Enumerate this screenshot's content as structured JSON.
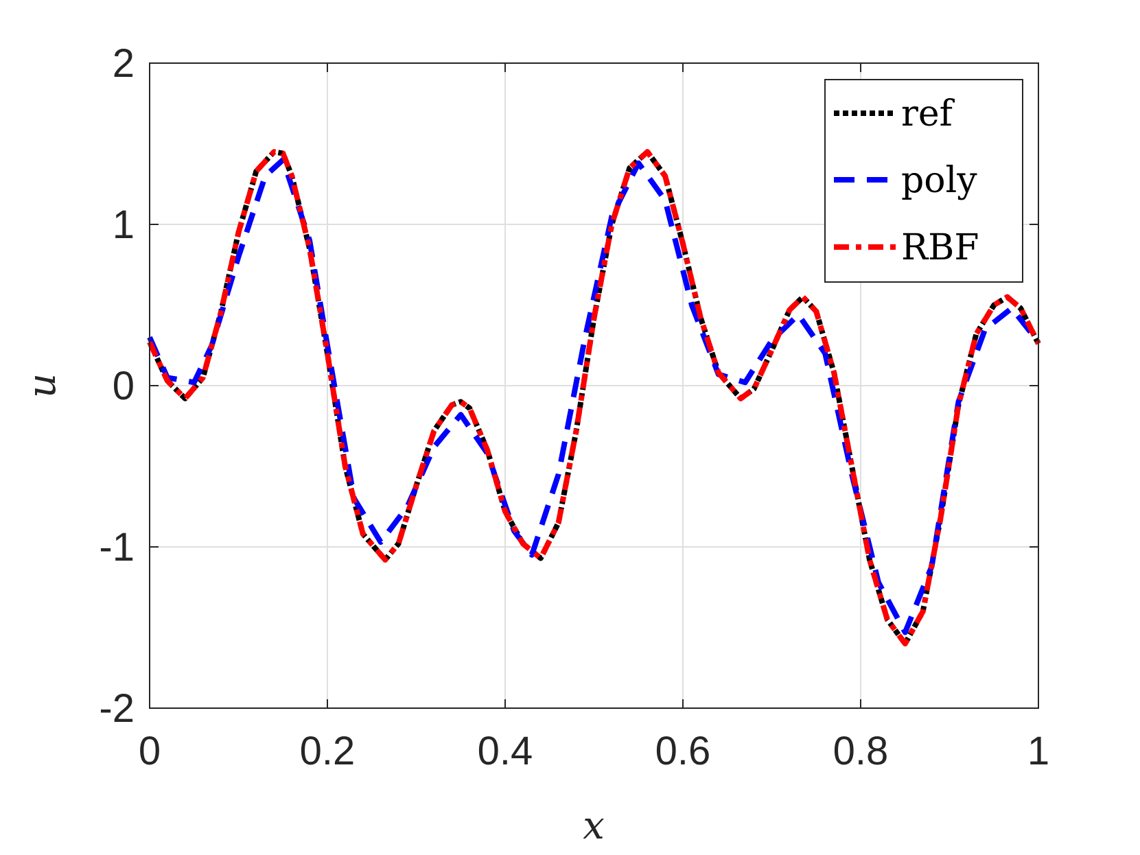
{
  "chart_data": {
    "type": "line",
    "title": "",
    "xlabel": "x",
    "ylabel": "u",
    "xlim": [
      0,
      1
    ],
    "ylim": [
      -2,
      2
    ],
    "xticks": [
      0,
      0.2,
      0.4,
      0.6,
      0.8,
      1
    ],
    "xtick_labels": [
      "0",
      "0.2",
      "0.4",
      "0.6",
      "0.8",
      "1"
    ],
    "yticks": [
      -2,
      -1,
      0,
      1,
      2
    ],
    "ytick_labels": [
      "-2",
      "-1",
      "0",
      "1",
      "2"
    ],
    "grid": true,
    "legend_position": "top-right",
    "series": [
      {
        "name": "ref",
        "color": "#000000",
        "style": "dotted",
        "x": [
          0,
          0.02,
          0.04,
          0.06,
          0.08,
          0.1,
          0.12,
          0.14,
          0.15,
          0.16,
          0.18,
          0.2,
          0.22,
          0.24,
          0.265,
          0.28,
          0.3,
          0.32,
          0.34,
          0.35,
          0.36,
          0.38,
          0.4,
          0.42,
          0.44,
          0.46,
          0.48,
          0.5,
          0.52,
          0.54,
          0.56,
          0.58,
          0.6,
          0.62,
          0.64,
          0.665,
          0.68,
          0.7,
          0.72,
          0.735,
          0.75,
          0.77,
          0.79,
          0.81,
          0.83,
          0.85,
          0.87,
          0.89,
          0.91,
          0.93,
          0.95,
          0.965,
          0.98,
          1.0
        ],
        "y": [
          0.27,
          0.03,
          -0.08,
          0.05,
          0.45,
          0.95,
          1.33,
          1.45,
          1.44,
          1.3,
          0.85,
          0.2,
          -0.5,
          -0.92,
          -1.08,
          -0.98,
          -0.62,
          -0.28,
          -0.12,
          -0.1,
          -0.14,
          -0.4,
          -0.78,
          -0.98,
          -1.07,
          -0.85,
          -0.28,
          0.42,
          1.0,
          1.35,
          1.45,
          1.3,
          0.88,
          0.42,
          0.08,
          -0.08,
          -0.02,
          0.22,
          0.47,
          0.55,
          0.46,
          0.08,
          -0.5,
          -1.08,
          -1.45,
          -1.6,
          -1.4,
          -0.82,
          -0.12,
          0.32,
          0.5,
          0.55,
          0.48,
          0.26
        ]
      },
      {
        "name": "poly",
        "color": "#0000ff",
        "style": "dashed",
        "x": [
          0,
          0.02,
          0.05,
          0.07,
          0.1,
          0.13,
          0.15,
          0.18,
          0.2,
          0.23,
          0.26,
          0.29,
          0.32,
          0.35,
          0.38,
          0.41,
          0.43,
          0.46,
          0.49,
          0.52,
          0.55,
          0.58,
          0.61,
          0.64,
          0.67,
          0.7,
          0.73,
          0.76,
          0.79,
          0.82,
          0.85,
          0.88,
          0.91,
          0.94,
          0.97,
          1.0
        ],
        "y": [
          0.3,
          0.05,
          0.02,
          0.25,
          0.8,
          1.3,
          1.4,
          0.9,
          0.25,
          -0.7,
          -0.97,
          -0.75,
          -0.38,
          -0.18,
          -0.42,
          -0.9,
          -1.05,
          -0.55,
          0.3,
          1.05,
          1.38,
          1.15,
          0.5,
          0.07,
          0.02,
          0.28,
          0.44,
          0.2,
          -0.55,
          -1.22,
          -1.53,
          -1.12,
          -0.1,
          0.35,
          0.48,
          0.27
        ]
      },
      {
        "name": "RBF",
        "color": "#ff0000",
        "style": "dashdot",
        "x": [
          0,
          0.02,
          0.04,
          0.06,
          0.08,
          0.1,
          0.12,
          0.14,
          0.15,
          0.16,
          0.18,
          0.2,
          0.22,
          0.24,
          0.265,
          0.28,
          0.3,
          0.32,
          0.34,
          0.35,
          0.36,
          0.38,
          0.4,
          0.42,
          0.44,
          0.46,
          0.48,
          0.5,
          0.52,
          0.54,
          0.56,
          0.58,
          0.6,
          0.62,
          0.64,
          0.665,
          0.68,
          0.7,
          0.72,
          0.735,
          0.75,
          0.77,
          0.79,
          0.81,
          0.83,
          0.85,
          0.87,
          0.89,
          0.91,
          0.93,
          0.95,
          0.965,
          0.98,
          1.0
        ],
        "y": [
          0.27,
          0.03,
          -0.08,
          0.05,
          0.45,
          0.95,
          1.33,
          1.45,
          1.44,
          1.3,
          0.85,
          0.2,
          -0.5,
          -0.92,
          -1.08,
          -0.98,
          -0.62,
          -0.28,
          -0.12,
          -0.1,
          -0.14,
          -0.4,
          -0.78,
          -0.98,
          -1.07,
          -0.85,
          -0.28,
          0.42,
          1.0,
          1.35,
          1.45,
          1.3,
          0.88,
          0.42,
          0.08,
          -0.08,
          -0.02,
          0.22,
          0.47,
          0.55,
          0.46,
          0.08,
          -0.5,
          -1.08,
          -1.45,
          -1.6,
          -1.4,
          -0.82,
          -0.12,
          0.32,
          0.5,
          0.55,
          0.48,
          0.26
        ]
      }
    ]
  }
}
